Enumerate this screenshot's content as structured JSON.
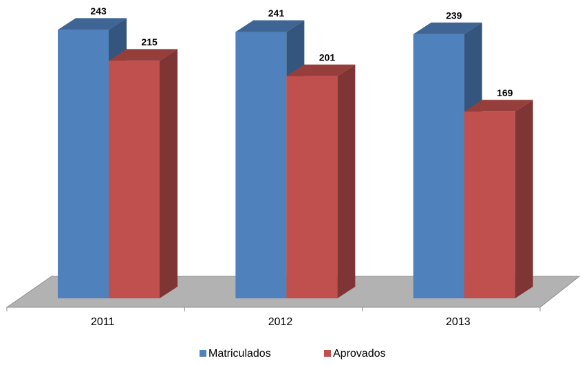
{
  "chart_data": {
    "type": "bar3d",
    "categories": [
      "2011",
      "2012",
      "2013"
    ],
    "series": [
      {
        "name": "Matriculados",
        "color": "#4f81bd",
        "values": [
          243,
          241,
          239
        ]
      },
      {
        "name": "Aprovados",
        "color": "#c0504d",
        "values": [
          215,
          201,
          169
        ]
      }
    ],
    "ylim": [
      0,
      260
    ],
    "legend": "bottom"
  }
}
